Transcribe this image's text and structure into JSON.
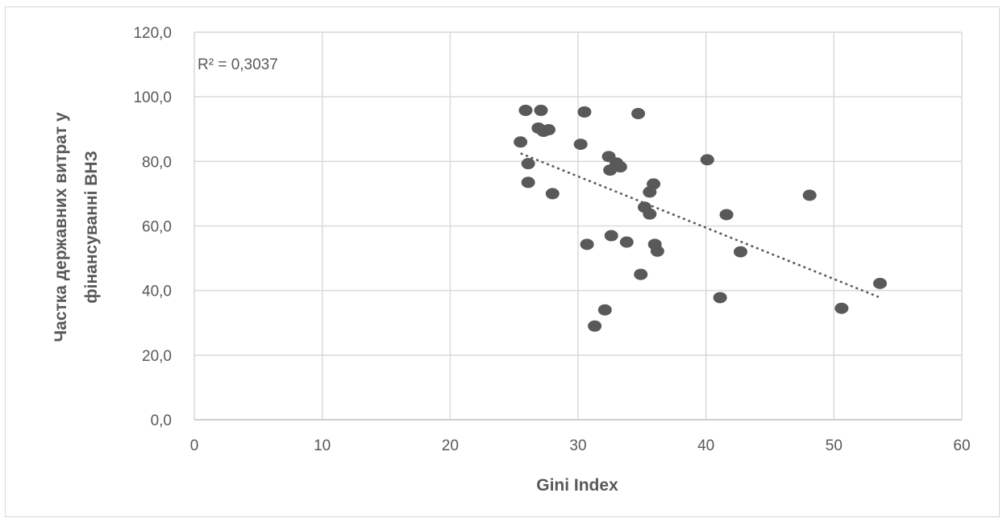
{
  "chart_data": {
    "type": "scatter",
    "xlabel": "Gini Index",
    "ylabel_line1": "Частка  державних  витрат у",
    "ylabel_line2": "фінансуванні  ВНЗ",
    "xlim": [
      0,
      60
    ],
    "ylim": [
      0,
      120
    ],
    "x_ticks": [
      "0",
      "10",
      "20",
      "30",
      "40",
      "50",
      "60"
    ],
    "y_ticks": [
      "0,0",
      "20,0",
      "40,0",
      "60,0",
      "80,0",
      "100,0",
      "120,0"
    ],
    "grid": true,
    "r_squared_label": "R² = 0,3037",
    "trendline": {
      "type": "linear",
      "x": [
        25.5,
        53.5
      ],
      "y": [
        82.5,
        38.0
      ]
    },
    "colors": {
      "points": "#595959",
      "grid": "#d9d9d9",
      "text": "#595959"
    },
    "points": [
      {
        "x": 25.9,
        "y": 95.8
      },
      {
        "x": 27.1,
        "y": 95.8
      },
      {
        "x": 30.5,
        "y": 95.3
      },
      {
        "x": 34.7,
        "y": 94.8
      },
      {
        "x": 26.9,
        "y": 90.3
      },
      {
        "x": 27.3,
        "y": 89.3
      },
      {
        "x": 27.7,
        "y": 89.8
      },
      {
        "x": 25.5,
        "y": 86.0
      },
      {
        "x": 30.2,
        "y": 85.3
      },
      {
        "x": 32.4,
        "y": 81.5
      },
      {
        "x": 40.1,
        "y": 80.5
      },
      {
        "x": 26.1,
        "y": 79.3
      },
      {
        "x": 33.0,
        "y": 79.5
      },
      {
        "x": 33.3,
        "y": 78.3
      },
      {
        "x": 32.5,
        "y": 77.3
      },
      {
        "x": 26.1,
        "y": 73.5
      },
      {
        "x": 35.9,
        "y": 73.0
      },
      {
        "x": 35.6,
        "y": 70.5
      },
      {
        "x": 28.0,
        "y": 70.0
      },
      {
        "x": 48.1,
        "y": 69.5
      },
      {
        "x": 35.2,
        "y": 65.8
      },
      {
        "x": 35.6,
        "y": 63.7
      },
      {
        "x": 41.6,
        "y": 63.5
      },
      {
        "x": 32.6,
        "y": 57.0
      },
      {
        "x": 30.7,
        "y": 54.3
      },
      {
        "x": 33.8,
        "y": 55.0
      },
      {
        "x": 36.0,
        "y": 54.3
      },
      {
        "x": 36.2,
        "y": 52.2
      },
      {
        "x": 42.7,
        "y": 52.0
      },
      {
        "x": 34.9,
        "y": 45.0
      },
      {
        "x": 53.6,
        "y": 42.2
      },
      {
        "x": 41.1,
        "y": 37.8
      },
      {
        "x": 50.6,
        "y": 34.5
      },
      {
        "x": 32.1,
        "y": 34.0
      },
      {
        "x": 31.3,
        "y": 29.0
      }
    ]
  }
}
